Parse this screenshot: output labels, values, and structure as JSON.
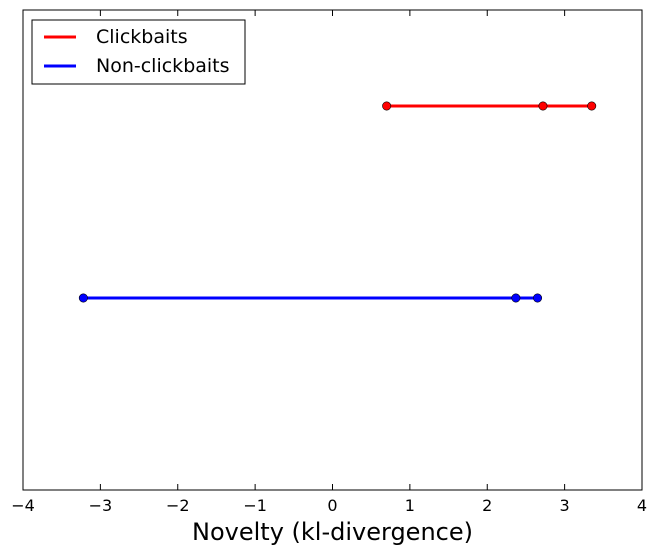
{
  "chart_data": {
    "type": "line",
    "title": "",
    "xlabel": "Novelty (kl-divergence)",
    "ylabel": "",
    "xlim": [
      -4,
      4
    ],
    "xticks": [
      -4,
      -3,
      -2,
      -1,
      0,
      1,
      2,
      3,
      4
    ],
    "xtick_labels": [
      "−4",
      "−3",
      "−2",
      "−1",
      "0",
      "1",
      "2",
      "3",
      "4"
    ],
    "y_ticks_shown": false,
    "grid": false,
    "legend_position": "top-left",
    "series": [
      {
        "name": "Clickbaits",
        "color": "#ff0000",
        "row": 2,
        "x": [
          0.7,
          2.72,
          3.35
        ]
      },
      {
        "name": "Non-clickbaits",
        "color": "#0000ff",
        "row": 1,
        "x": [
          -3.22,
          2.37,
          2.65
        ]
      }
    ]
  }
}
